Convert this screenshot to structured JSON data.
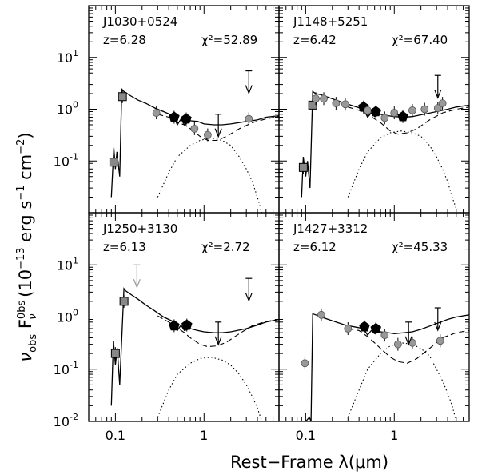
{
  "figure": {
    "xlabel": "Rest−Frame λ(μm)",
    "ylabel": "ν_obs F_ν^obs (10^-13 erg s^-1 cm^-2)",
    "xticklabels": [
      "0.1",
      "1",
      "0.1",
      "1"
    ],
    "yticklabels": {
      "top": [
        "10",
        "10",
        "10"
      ],
      "top_exponents": [
        "1",
        "0",
        "-1"
      ],
      "bottom": [
        "10",
        "10",
        "10",
        "10"
      ],
      "bottom_exponents": [
        "1",
        "0",
        "-1",
        "-2"
      ]
    }
  },
  "chart_data": [
    {
      "type": "scatter",
      "title": "J1030+0524",
      "redshift": "z=6.28",
      "chi2": "χ²=52.89",
      "xscale": "log",
      "yscale": "log",
      "xlim": [
        0.05,
        7
      ],
      "ylim": [
        0.01,
        100
      ],
      "photometry": [
        {
          "x": 0.096,
          "y": 0.095,
          "marker": "square"
        },
        {
          "x": 0.12,
          "y": 1.75,
          "marker": "square"
        },
        {
          "x": 0.29,
          "y": 0.85,
          "marker": "circle"
        },
        {
          "x": 0.46,
          "y": 0.7,
          "marker": "pentagon"
        },
        {
          "x": 0.63,
          "y": 0.65,
          "marker": "pentagon"
        },
        {
          "x": 0.78,
          "y": 0.42,
          "marker": "circle"
        },
        {
          "x": 1.1,
          "y": 0.32,
          "marker": "circle"
        },
        {
          "x": 3.2,
          "y": 0.65,
          "marker": "circle"
        }
      ],
      "upper_limits": [
        {
          "x": 1.45,
          "y": 0.8
        },
        {
          "x": 3.2,
          "y": 5.5
        }
      ],
      "series": [
        {
          "style": "solid",
          "x": [
            0.09,
            0.096,
            0.1,
            0.104,
            0.112,
            0.118,
            0.12,
            0.13,
            0.15,
            0.18,
            0.22,
            0.28,
            0.35,
            0.45,
            0.5,
            0.55,
            0.6,
            0.7,
            0.85,
            1.0,
            1.3,
            1.6,
            2.0,
            3.0,
            4.0,
            5.0,
            7.0
          ],
          "y": [
            0.02,
            0.18,
            0.07,
            0.15,
            0.05,
            2.5,
            2.3,
            2.1,
            1.8,
            1.5,
            1.3,
            1.05,
            0.9,
            0.75,
            0.5,
            0.65,
            0.5,
            0.6,
            0.58,
            0.52,
            0.5,
            0.5,
            0.52,
            0.58,
            0.62,
            0.7,
            0.75
          ]
        },
        {
          "style": "dashed",
          "x": [
            0.3,
            0.4,
            0.5,
            0.6,
            0.7,
            0.9,
            1.1,
            1.4,
            1.8,
            2.5,
            3.5,
            5.0,
            7.0
          ],
          "y": [
            0.8,
            0.7,
            0.55,
            0.5,
            0.42,
            0.3,
            0.25,
            0.25,
            0.3,
            0.42,
            0.55,
            0.65,
            0.72
          ]
        },
        {
          "style": "dotted",
          "x": [
            0.3,
            0.4,
            0.5,
            0.7,
            0.9,
            1.2,
            1.6,
            2.0,
            2.5,
            3.0,
            3.5,
            4.0,
            4.5
          ],
          "y": [
            0.02,
            0.06,
            0.12,
            0.2,
            0.25,
            0.28,
            0.25,
            0.2,
            0.12,
            0.07,
            0.04,
            0.02,
            0.01
          ]
        }
      ]
    },
    {
      "type": "scatter",
      "title": "J1148+5251",
      "redshift": "z=6.42",
      "chi2": "χ²=67.40",
      "xscale": "log",
      "yscale": "log",
      "xlim": [
        0.05,
        7
      ],
      "ylim": [
        0.01,
        100
      ],
      "photometry": [
        {
          "x": 0.094,
          "y": 0.075,
          "marker": "square"
        },
        {
          "x": 0.12,
          "y": 1.2,
          "marker": "square"
        },
        {
          "x": 0.13,
          "y": 1.6,
          "marker": "circle"
        },
        {
          "x": 0.16,
          "y": 1.6,
          "marker": "circle"
        },
        {
          "x": 0.22,
          "y": 1.3,
          "marker": "circle"
        },
        {
          "x": 0.28,
          "y": 1.25,
          "marker": "circle"
        },
        {
          "x": 0.45,
          "y": 1.1,
          "marker": "pentagon"
        },
        {
          "x": 0.5,
          "y": 0.95,
          "marker": "circle"
        },
        {
          "x": 0.62,
          "y": 0.9,
          "marker": "pentagon"
        },
        {
          "x": 0.78,
          "y": 0.68,
          "marker": "circle"
        },
        {
          "x": 1.0,
          "y": 0.85,
          "marker": "circle"
        },
        {
          "x": 1.25,
          "y": 0.72,
          "marker": "pentagon"
        },
        {
          "x": 1.6,
          "y": 0.95,
          "marker": "circle"
        },
        {
          "x": 2.2,
          "y": 1.0,
          "marker": "circle"
        },
        {
          "x": 3.1,
          "y": 1.05,
          "marker": "circle"
        },
        {
          "x": 3.5,
          "y": 1.3,
          "marker": "circle"
        }
      ],
      "upper_limits": [
        {
          "x": 3.1,
          "y": 4.5
        }
      ],
      "series": [
        {
          "style": "solid",
          "x": [
            0.09,
            0.094,
            0.1,
            0.105,
            0.112,
            0.12,
            0.13,
            0.15,
            0.18,
            0.22,
            0.28,
            0.35,
            0.45,
            0.5,
            0.55,
            0.6,
            0.7,
            0.85,
            1.0,
            1.3,
            1.6,
            2.0,
            3.0,
            4.0,
            5.0,
            7.0
          ],
          "y": [
            0.02,
            0.12,
            0.05,
            0.1,
            0.03,
            2.2,
            2.0,
            1.9,
            1.7,
            1.5,
            1.3,
            1.15,
            1.0,
            0.7,
            0.85,
            0.72,
            0.8,
            0.75,
            0.72,
            0.7,
            0.72,
            0.78,
            0.9,
            1.0,
            1.1,
            1.2
          ]
        },
        {
          "style": "dashed",
          "x": [
            0.3,
            0.4,
            0.5,
            0.6,
            0.7,
            0.9,
            1.1,
            1.4,
            1.8,
            2.5,
            3.5,
            5.0,
            7.0
          ],
          "y": [
            1.1,
            0.95,
            0.8,
            0.65,
            0.55,
            0.38,
            0.33,
            0.35,
            0.42,
            0.62,
            0.85,
            1.0,
            1.1
          ]
        },
        {
          "style": "dotted",
          "x": [
            0.3,
            0.4,
            0.5,
            0.7,
            0.9,
            1.2,
            1.6,
            2.0,
            2.5,
            3.0,
            3.5,
            4.0,
            4.5,
            5.0
          ],
          "y": [
            0.02,
            0.07,
            0.15,
            0.28,
            0.35,
            0.38,
            0.35,
            0.3,
            0.2,
            0.12,
            0.07,
            0.04,
            0.02,
            0.012
          ]
        }
      ]
    },
    {
      "type": "scatter",
      "title": "J1250+3130",
      "redshift": "z=6.13",
      "chi2": "χ²=2.72",
      "xscale": "log",
      "yscale": "log",
      "xlim": [
        0.05,
        7
      ],
      "ylim": [
        0.01,
        100
      ],
      "photometry": [
        {
          "x": 0.1,
          "y": 0.2,
          "marker": "square"
        },
        {
          "x": 0.125,
          "y": 2.0,
          "marker": "square"
        },
        {
          "x": 0.46,
          "y": 0.68,
          "marker": "pentagon"
        },
        {
          "x": 0.64,
          "y": 0.7,
          "marker": "pentagon"
        }
      ],
      "upper_limits": [
        {
          "x": 0.175,
          "y": 10,
          "color": "#999999"
        },
        {
          "x": 1.45,
          "y": 0.8
        },
        {
          "x": 3.2,
          "y": 5.5
        }
      ],
      "series": [
        {
          "style": "solid",
          "x": [
            0.09,
            0.095,
            0.1,
            0.105,
            0.112,
            0.125,
            0.13,
            0.15,
            0.18,
            0.22,
            0.28,
            0.35,
            0.45,
            0.5,
            0.55,
            0.6,
            0.7,
            0.85,
            1.0,
            1.3,
            1.6,
            2.0,
            3.0,
            4.0,
            5.0,
            7.0
          ],
          "y": [
            0.02,
            0.35,
            0.12,
            0.25,
            0.05,
            3.5,
            3.2,
            2.7,
            2.2,
            1.7,
            1.3,
            1.0,
            0.82,
            0.55,
            0.7,
            0.55,
            0.6,
            0.55,
            0.52,
            0.5,
            0.5,
            0.52,
            0.6,
            0.7,
            0.8,
            0.9
          ]
        },
        {
          "style": "dashed",
          "x": [
            0.3,
            0.4,
            0.5,
            0.6,
            0.7,
            0.9,
            1.1,
            1.4,
            1.8,
            2.5,
            3.5,
            5.0,
            7.0
          ],
          "y": [
            1.05,
            0.8,
            0.62,
            0.5,
            0.4,
            0.3,
            0.27,
            0.28,
            0.33,
            0.48,
            0.68,
            0.82,
            0.9
          ]
        },
        {
          "style": "dotted",
          "x": [
            0.3,
            0.4,
            0.5,
            0.7,
            0.9,
            1.2,
            1.6,
            2.0,
            2.5,
            3.0,
            3.5,
            4.0,
            4.5
          ],
          "y": [
            0.012,
            0.04,
            0.08,
            0.13,
            0.16,
            0.17,
            0.15,
            0.12,
            0.08,
            0.05,
            0.03,
            0.018,
            0.01
          ]
        }
      ]
    },
    {
      "type": "scatter",
      "title": "J1427+3312",
      "redshift": "z=6.12",
      "chi2": "χ²=45.33",
      "xscale": "log",
      "yscale": "log",
      "xlim": [
        0.05,
        7
      ],
      "ylim": [
        0.01,
        100
      ],
      "photometry": [
        {
          "x": 0.098,
          "y": 0.13,
          "marker": "circle"
        },
        {
          "x": 0.15,
          "y": 1.1,
          "marker": "circle"
        },
        {
          "x": 0.3,
          "y": 0.6,
          "marker": "circle"
        },
        {
          "x": 0.46,
          "y": 0.65,
          "marker": "pentagon"
        },
        {
          "x": 0.62,
          "y": 0.6,
          "marker": "pentagon"
        },
        {
          "x": 0.78,
          "y": 0.45,
          "marker": "circle"
        },
        {
          "x": 1.1,
          "y": 0.3,
          "marker": "circle"
        },
        {
          "x": 1.6,
          "y": 0.32,
          "marker": "circle"
        },
        {
          "x": 3.3,
          "y": 0.35,
          "marker": "circle"
        }
      ],
      "upper_limits": [
        {
          "x": 1.45,
          "y": 0.8
        },
        {
          "x": 3.1,
          "y": 1.5
        }
      ],
      "series": [
        {
          "style": "solid",
          "x": [
            0.09,
            0.1,
            0.11,
            0.115,
            0.12,
            0.13,
            0.15,
            0.18,
            0.22,
            0.28,
            0.35,
            0.45,
            0.5,
            0.55,
            0.6,
            0.7,
            0.85,
            1.0,
            1.3,
            1.6,
            2.0,
            3.0,
            4.0,
            5.0,
            7.0
          ],
          "y": [
            0.01,
            0.01,
            0.012,
            0.01,
            1.15,
            1.1,
            1.0,
            0.9,
            0.8,
            0.7,
            0.65,
            0.6,
            0.45,
            0.55,
            0.48,
            0.52,
            0.5,
            0.48,
            0.5,
            0.52,
            0.58,
            0.75,
            0.9,
            1.0,
            1.1
          ]
        },
        {
          "style": "dashed",
          "x": [
            0.3,
            0.4,
            0.5,
            0.6,
            0.7,
            0.9,
            1.1,
            1.4,
            1.8,
            2.5,
            3.5,
            5.0,
            7.0
          ],
          "y": [
            0.6,
            0.55,
            0.42,
            0.32,
            0.25,
            0.17,
            0.14,
            0.13,
            0.16,
            0.25,
            0.4,
            0.5,
            0.55
          ]
        },
        {
          "style": "dotted",
          "x": [
            0.3,
            0.4,
            0.5,
            0.7,
            0.9,
            1.2,
            1.6,
            2.0,
            2.5,
            3.0,
            3.5,
            4.0,
            4.5,
            5.0
          ],
          "y": [
            0.012,
            0.04,
            0.1,
            0.2,
            0.28,
            0.32,
            0.3,
            0.25,
            0.18,
            0.1,
            0.06,
            0.035,
            0.02,
            0.01
          ]
        }
      ]
    }
  ]
}
